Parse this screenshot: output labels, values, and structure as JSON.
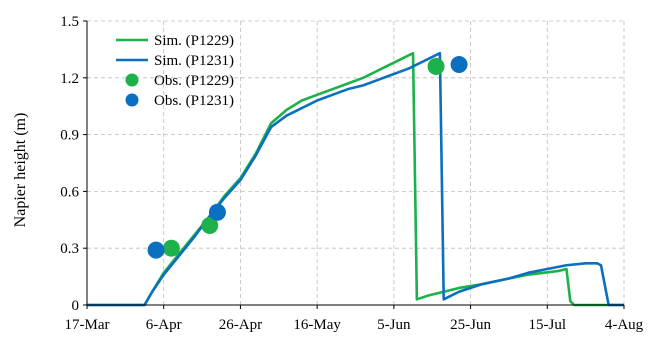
{
  "chart_data": {
    "type": "line",
    "title": "",
    "xlabel": "",
    "ylabel": "Napier height (m)",
    "x_axis": {
      "kind": "date",
      "range": [
        "2014-03-17",
        "2014-08-04"
      ],
      "ticks": [
        {
          "date": "2014-03-17",
          "label": "17-Mar"
        },
        {
          "date": "2014-04-06",
          "label": "6-Apr"
        },
        {
          "date": "2014-04-26",
          "label": "26-Apr"
        },
        {
          "date": "2014-05-16",
          "label": "16-May"
        },
        {
          "date": "2014-06-05",
          "label": "5-Jun"
        },
        {
          "date": "2014-06-25",
          "label": "25-Jun"
        },
        {
          "date": "2014-07-15",
          "label": "15-Jul"
        },
        {
          "date": "2014-08-04",
          "label": "4-Aug"
        }
      ]
    },
    "y_axis": {
      "range": [
        0,
        1.5
      ],
      "ticks": [
        {
          "value": 0,
          "label": "0"
        },
        {
          "value": 0.3,
          "label": "0.3"
        },
        {
          "value": 0.6,
          "label": "0.6"
        },
        {
          "value": 0.9,
          "label": "0.9"
        },
        {
          "value": 1.2,
          "label": "1.2"
        },
        {
          "value": 1.5,
          "label": "1.5"
        }
      ]
    },
    "grid": "dashed",
    "legend_position": "top-left",
    "series": [
      {
        "name": "Sim. (P1229)",
        "kind": "line",
        "color": "#1db14b",
        "points": [
          [
            "2014-03-17",
            0
          ],
          [
            "2014-04-01",
            0
          ],
          [
            "2014-04-03",
            0.07
          ],
          [
            "2014-04-06",
            0.17
          ],
          [
            "2014-04-10",
            0.27
          ],
          [
            "2014-04-14",
            0.37
          ],
          [
            "2014-04-18",
            0.47
          ],
          [
            "2014-04-22",
            0.58
          ],
          [
            "2014-04-26",
            0.67
          ],
          [
            "2014-04-30",
            0.8
          ],
          [
            "2014-05-04",
            0.96
          ],
          [
            "2014-05-08",
            1.03
          ],
          [
            "2014-05-12",
            1.08
          ],
          [
            "2014-05-16",
            1.11
          ],
          [
            "2014-05-20",
            1.14
          ],
          [
            "2014-05-24",
            1.17
          ],
          [
            "2014-05-28",
            1.2
          ],
          [
            "2014-06-01",
            1.24
          ],
          [
            "2014-06-05",
            1.28
          ],
          [
            "2014-06-09",
            1.32
          ],
          [
            "2014-06-10",
            1.33
          ],
          [
            "2014-06-11",
            0.03
          ],
          [
            "2014-06-14",
            0.05
          ],
          [
            "2014-06-18",
            0.07
          ],
          [
            "2014-06-22",
            0.09
          ],
          [
            "2014-06-28",
            0.11
          ],
          [
            "2014-07-05",
            0.14
          ],
          [
            "2014-07-10",
            0.16
          ],
          [
            "2014-07-14",
            0.17
          ],
          [
            "2014-07-18",
            0.18
          ],
          [
            "2014-07-20",
            0.19
          ],
          [
            "2014-07-21",
            0.02
          ],
          [
            "2014-07-22",
            0
          ],
          [
            "2014-08-04",
            0
          ]
        ]
      },
      {
        "name": "Sim. (P1231)",
        "kind": "line",
        "color": "#0b6fbf",
        "points": [
          [
            "2014-03-17",
            0
          ],
          [
            "2014-04-01",
            0
          ],
          [
            "2014-04-03",
            0.07
          ],
          [
            "2014-04-06",
            0.16
          ],
          [
            "2014-04-10",
            0.26
          ],
          [
            "2014-04-14",
            0.36
          ],
          [
            "2014-04-18",
            0.47
          ],
          [
            "2014-04-22",
            0.57
          ],
          [
            "2014-04-26",
            0.66
          ],
          [
            "2014-04-30",
            0.79
          ],
          [
            "2014-05-04",
            0.94
          ],
          [
            "2014-05-08",
            1.0
          ],
          [
            "2014-05-12",
            1.04
          ],
          [
            "2014-05-16",
            1.08
          ],
          [
            "2014-05-20",
            1.11
          ],
          [
            "2014-05-24",
            1.14
          ],
          [
            "2014-05-28",
            1.16
          ],
          [
            "2014-06-01",
            1.19
          ],
          [
            "2014-06-05",
            1.22
          ],
          [
            "2014-06-09",
            1.25
          ],
          [
            "2014-06-13",
            1.29
          ],
          [
            "2014-06-17",
            1.33
          ],
          [
            "2014-06-18",
            0.03
          ],
          [
            "2014-06-22",
            0.07
          ],
          [
            "2014-06-28",
            0.11
          ],
          [
            "2014-07-05",
            0.14
          ],
          [
            "2014-07-10",
            0.17
          ],
          [
            "2014-07-15",
            0.19
          ],
          [
            "2014-07-20",
            0.21
          ],
          [
            "2014-07-25",
            0.22
          ],
          [
            "2014-07-28",
            0.22
          ],
          [
            "2014-07-29",
            0.21
          ],
          [
            "2014-07-31",
            0
          ],
          [
            "2014-08-04",
            0
          ]
        ]
      },
      {
        "name": "Obs. (P1229)",
        "kind": "marker",
        "color": "#1db14b",
        "points": [
          [
            "2014-04-08",
            0.3
          ],
          [
            "2014-04-18",
            0.42
          ],
          [
            "2014-06-16",
            1.26
          ]
        ]
      },
      {
        "name": "Obs. (P1231)",
        "kind": "marker",
        "color": "#0b6fbf",
        "points": [
          [
            "2014-04-04",
            0.29
          ],
          [
            "2014-04-20",
            0.49
          ],
          [
            "2014-06-22",
            1.27
          ]
        ]
      }
    ]
  }
}
